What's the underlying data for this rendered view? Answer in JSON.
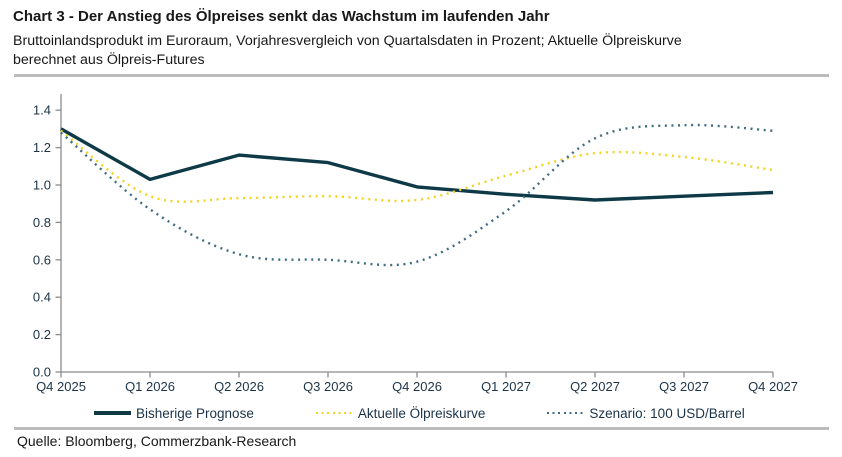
{
  "header": {
    "title": "Chart 3 - Der Anstieg des Ölpreises senkt das Wachstum im laufenden Jahr",
    "subtitle": "Bruttoinlandsprodukt im Euroraum, Vorjahresvergleich von Quartalsdaten in Prozent; Aktuelle Ölpreiskurve berechnet aus Ölpreis-Futures"
  },
  "footer": {
    "source": "Quelle: Bloomberg, Commerzbank-Research"
  },
  "colors": {
    "forecast": "#0e3946",
    "oil_curve": "#f2d41c",
    "scenario": "#3f6c80",
    "axis": "#8c8c8c",
    "tick_label": "#1b3348",
    "divider": "#bcbcbc",
    "text": "#181818"
  },
  "chart_data": {
    "type": "line",
    "title": "Chart 3 - Der Anstieg des Ölpreises senkt das Wachstum im laufenden Jahr",
    "xlabel": "",
    "ylabel": "",
    "ylim": [
      0,
      1.4
    ],
    "y_ticks": [
      0.0,
      0.2,
      0.4,
      0.6,
      0.8,
      1.0,
      1.2,
      1.4
    ],
    "grid": false,
    "legend_position": "bottom",
    "categories": [
      "Q4 2025",
      "Q1 2026",
      "Q2 2026",
      "Q3 2026",
      "Q4 2026",
      "Q1 2027",
      "Q2 2027",
      "Q3 2027",
      "Q4 2027"
    ],
    "series": [
      {
        "name": "Bisherige Prognose",
        "style": "solid",
        "color_key": "forecast",
        "values": [
          1.3,
          1.03,
          1.16,
          1.12,
          0.99,
          0.95,
          0.92,
          0.94,
          0.96
        ]
      },
      {
        "name": "Aktuelle Ölpreiskurve",
        "style": "dotted",
        "color_key": "oil_curve",
        "values": [
          1.29,
          0.94,
          0.93,
          0.94,
          0.92,
          1.05,
          1.17,
          1.15,
          1.08
        ]
      },
      {
        "name": "Szenario: 100 USD/Barrel",
        "style": "dotted",
        "color_key": "scenario",
        "values": [
          1.28,
          0.87,
          0.63,
          0.6,
          0.59,
          0.86,
          1.25,
          1.32,
          1.29
        ]
      }
    ]
  }
}
